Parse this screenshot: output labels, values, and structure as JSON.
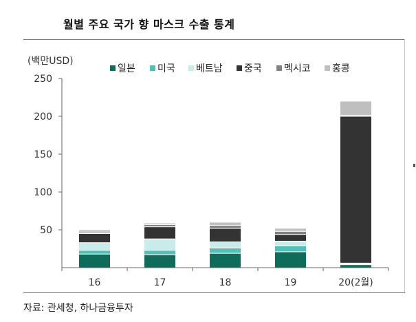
{
  "title": "월별 주요 국가 향 마스크 수출 통계",
  "source": "자료: 관세청, 하나금융투자",
  "chart_data": {
    "type": "bar",
    "stacked": true,
    "title": "월별 주요 국가 향 마스크 수출 통계",
    "ylabel": "(백만USD)",
    "xlabel": "",
    "ylim": [
      0,
      250
    ],
    "yticks": [
      "250",
      "200",
      "150",
      "100",
      "50"
    ],
    "categories": [
      "16",
      "17",
      "18",
      "19",
      "20(2월)"
    ],
    "legend_position": "top-right",
    "grid": false,
    "series": [
      {
        "name": "일본",
        "color": "#0f6b5a",
        "values": [
          18,
          17,
          19,
          21,
          4
        ]
      },
      {
        "name": "미국",
        "color": "#52c0b4",
        "values": [
          5,
          6,
          7,
          8,
          1
        ]
      },
      {
        "name": "베트남",
        "color": "#c9ecea",
        "values": [
          10,
          15,
          8,
          6,
          1
        ]
      },
      {
        "name": "중국",
        "color": "#333333",
        "values": [
          12,
          16,
          18,
          9,
          194
        ]
      },
      {
        "name": "멕시코",
        "color": "#828282",
        "values": [
          2,
          3,
          4,
          4,
          1
        ]
      },
      {
        "name": "홍콩",
        "color": "#bfbfbf",
        "values": [
          3,
          2,
          4,
          4,
          19
        ]
      }
    ]
  }
}
